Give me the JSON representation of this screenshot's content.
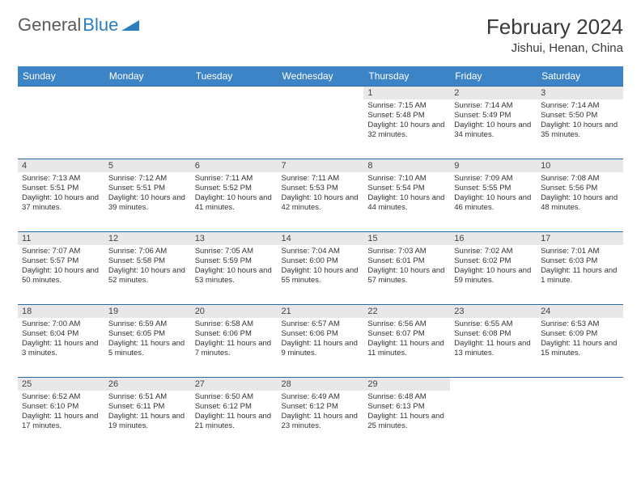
{
  "logo": {
    "text1": "General",
    "text2": "Blue"
  },
  "title": "February 2024",
  "location": "Jishui, Henan, China",
  "colors": {
    "header_bg": "#3d84c6",
    "header_text": "#ffffff",
    "row_border": "#2b6aa8",
    "daynum_bg": "#e8e8e8",
    "body_text": "#333333",
    "logo_gray": "#5a5a5a",
    "logo_blue": "#2b7fbf"
  },
  "day_headers": [
    "Sunday",
    "Monday",
    "Tuesday",
    "Wednesday",
    "Thursday",
    "Friday",
    "Saturday"
  ],
  "weeks": [
    [
      {
        "blank": true
      },
      {
        "blank": true
      },
      {
        "blank": true
      },
      {
        "blank": true
      },
      {
        "day": "1",
        "sunrise": "Sunrise: 7:15 AM",
        "sunset": "Sunset: 5:48 PM",
        "daylight": "Daylight: 10 hours and 32 minutes."
      },
      {
        "day": "2",
        "sunrise": "Sunrise: 7:14 AM",
        "sunset": "Sunset: 5:49 PM",
        "daylight": "Daylight: 10 hours and 34 minutes."
      },
      {
        "day": "3",
        "sunrise": "Sunrise: 7:14 AM",
        "sunset": "Sunset: 5:50 PM",
        "daylight": "Daylight: 10 hours and 35 minutes."
      }
    ],
    [
      {
        "day": "4",
        "sunrise": "Sunrise: 7:13 AM",
        "sunset": "Sunset: 5:51 PM",
        "daylight": "Daylight: 10 hours and 37 minutes."
      },
      {
        "day": "5",
        "sunrise": "Sunrise: 7:12 AM",
        "sunset": "Sunset: 5:51 PM",
        "daylight": "Daylight: 10 hours and 39 minutes."
      },
      {
        "day": "6",
        "sunrise": "Sunrise: 7:11 AM",
        "sunset": "Sunset: 5:52 PM",
        "daylight": "Daylight: 10 hours and 41 minutes."
      },
      {
        "day": "7",
        "sunrise": "Sunrise: 7:11 AM",
        "sunset": "Sunset: 5:53 PM",
        "daylight": "Daylight: 10 hours and 42 minutes."
      },
      {
        "day": "8",
        "sunrise": "Sunrise: 7:10 AM",
        "sunset": "Sunset: 5:54 PM",
        "daylight": "Daylight: 10 hours and 44 minutes."
      },
      {
        "day": "9",
        "sunrise": "Sunrise: 7:09 AM",
        "sunset": "Sunset: 5:55 PM",
        "daylight": "Daylight: 10 hours and 46 minutes."
      },
      {
        "day": "10",
        "sunrise": "Sunrise: 7:08 AM",
        "sunset": "Sunset: 5:56 PM",
        "daylight": "Daylight: 10 hours and 48 minutes."
      }
    ],
    [
      {
        "day": "11",
        "sunrise": "Sunrise: 7:07 AM",
        "sunset": "Sunset: 5:57 PM",
        "daylight": "Daylight: 10 hours and 50 minutes."
      },
      {
        "day": "12",
        "sunrise": "Sunrise: 7:06 AM",
        "sunset": "Sunset: 5:58 PM",
        "daylight": "Daylight: 10 hours and 52 minutes."
      },
      {
        "day": "13",
        "sunrise": "Sunrise: 7:05 AM",
        "sunset": "Sunset: 5:59 PM",
        "daylight": "Daylight: 10 hours and 53 minutes."
      },
      {
        "day": "14",
        "sunrise": "Sunrise: 7:04 AM",
        "sunset": "Sunset: 6:00 PM",
        "daylight": "Daylight: 10 hours and 55 minutes."
      },
      {
        "day": "15",
        "sunrise": "Sunrise: 7:03 AM",
        "sunset": "Sunset: 6:01 PM",
        "daylight": "Daylight: 10 hours and 57 minutes."
      },
      {
        "day": "16",
        "sunrise": "Sunrise: 7:02 AM",
        "sunset": "Sunset: 6:02 PM",
        "daylight": "Daylight: 10 hours and 59 minutes."
      },
      {
        "day": "17",
        "sunrise": "Sunrise: 7:01 AM",
        "sunset": "Sunset: 6:03 PM",
        "daylight": "Daylight: 11 hours and 1 minute."
      }
    ],
    [
      {
        "day": "18",
        "sunrise": "Sunrise: 7:00 AM",
        "sunset": "Sunset: 6:04 PM",
        "daylight": "Daylight: 11 hours and 3 minutes."
      },
      {
        "day": "19",
        "sunrise": "Sunrise: 6:59 AM",
        "sunset": "Sunset: 6:05 PM",
        "daylight": "Daylight: 11 hours and 5 minutes."
      },
      {
        "day": "20",
        "sunrise": "Sunrise: 6:58 AM",
        "sunset": "Sunset: 6:06 PM",
        "daylight": "Daylight: 11 hours and 7 minutes."
      },
      {
        "day": "21",
        "sunrise": "Sunrise: 6:57 AM",
        "sunset": "Sunset: 6:06 PM",
        "daylight": "Daylight: 11 hours and 9 minutes."
      },
      {
        "day": "22",
        "sunrise": "Sunrise: 6:56 AM",
        "sunset": "Sunset: 6:07 PM",
        "daylight": "Daylight: 11 hours and 11 minutes."
      },
      {
        "day": "23",
        "sunrise": "Sunrise: 6:55 AM",
        "sunset": "Sunset: 6:08 PM",
        "daylight": "Daylight: 11 hours and 13 minutes."
      },
      {
        "day": "24",
        "sunrise": "Sunrise: 6:53 AM",
        "sunset": "Sunset: 6:09 PM",
        "daylight": "Daylight: 11 hours and 15 minutes."
      }
    ],
    [
      {
        "day": "25",
        "sunrise": "Sunrise: 6:52 AM",
        "sunset": "Sunset: 6:10 PM",
        "daylight": "Daylight: 11 hours and 17 minutes."
      },
      {
        "day": "26",
        "sunrise": "Sunrise: 6:51 AM",
        "sunset": "Sunset: 6:11 PM",
        "daylight": "Daylight: 11 hours and 19 minutes."
      },
      {
        "day": "27",
        "sunrise": "Sunrise: 6:50 AM",
        "sunset": "Sunset: 6:12 PM",
        "daylight": "Daylight: 11 hours and 21 minutes."
      },
      {
        "day": "28",
        "sunrise": "Sunrise: 6:49 AM",
        "sunset": "Sunset: 6:12 PM",
        "daylight": "Daylight: 11 hours and 23 minutes."
      },
      {
        "day": "29",
        "sunrise": "Sunrise: 6:48 AM",
        "sunset": "Sunset: 6:13 PM",
        "daylight": "Daylight: 11 hours and 25 minutes."
      },
      {
        "blank": true
      },
      {
        "blank": true
      }
    ]
  ]
}
